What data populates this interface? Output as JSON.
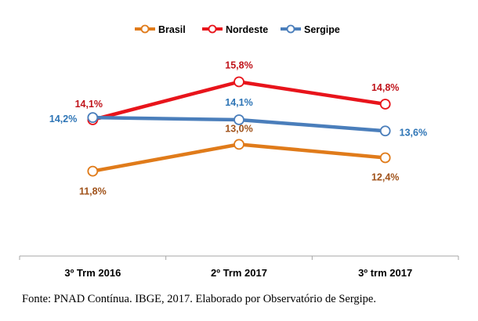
{
  "chart_data": {
    "type": "line",
    "categories": [
      "3º Trm 2016",
      "2º Trm 2017",
      "3º trm 2017"
    ],
    "series": [
      {
        "name": "Brasil",
        "values": [
          11.8,
          13.0,
          12.4
        ],
        "labels": [
          "11,8%",
          "13,0%",
          "12,4%"
        ],
        "color": "#E07B1A",
        "label_color": "#A0521A"
      },
      {
        "name": "Nordeste",
        "values": [
          14.1,
          15.8,
          14.8
        ],
        "labels": [
          "14,1%",
          "15,8%",
          "14,8%"
        ],
        "color": "#E8141B",
        "label_color": "#C0141B"
      },
      {
        "name": "Sergipe",
        "values": [
          14.2,
          14.1,
          13.6
        ],
        "labels": [
          "14,2%",
          "14,1%",
          "13,6%"
        ],
        "color": "#4A7EBB",
        "label_color": "#2E75B6"
      }
    ],
    "ylim": [
      8,
      17.5
    ],
    "grid": false,
    "legend": "top"
  },
  "source": "Fonte: PNAD Contínua. IBGE, 2017. Elaborado por Observatório de Sergipe."
}
